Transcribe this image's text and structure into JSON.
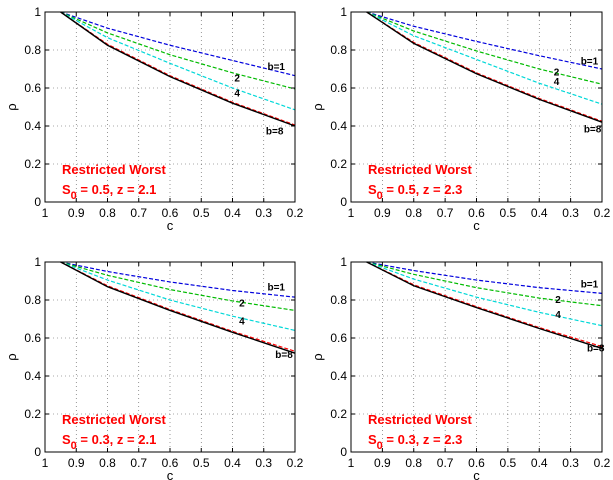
{
  "chart_data": [
    {
      "type": "line",
      "xlabel": "c",
      "ylabel": "ρ",
      "xlim": [
        1,
        0.2
      ],
      "ylim": [
        0,
        1
      ],
      "x_reversed": true,
      "x_ticks": [
        "1",
        "0.9",
        "0.8",
        "0.7",
        "0.6",
        "0.5",
        "0.4",
        "0.3",
        "0.2"
      ],
      "y_ticks": [
        "0",
        "0.2",
        "0.4",
        "0.6",
        "0.8",
        "1"
      ],
      "grid": true,
      "annotation": {
        "line1": "Restricted Worst",
        "sub_base": "S",
        "sub": "0",
        "line2_rest": " = 0.5, z = 2.1",
        "color": "#ff0000"
      },
      "series": [
        {
          "label": "b=1",
          "color": "#0000dd",
          "dashed": true,
          "points": [
            [
              0.95,
              1.0
            ],
            [
              0.8,
              0.915
            ],
            [
              0.6,
              0.825
            ],
            [
              0.4,
              0.745
            ],
            [
              0.2,
              0.665
            ]
          ]
        },
        {
          "label": "2",
          "color": "#00bb00",
          "dashed": true,
          "points": [
            [
              0.95,
              1.0
            ],
            [
              0.8,
              0.89
            ],
            [
              0.6,
              0.775
            ],
            [
              0.4,
              0.68
            ],
            [
              0.2,
              0.595
            ]
          ]
        },
        {
          "label": "4",
          "color": "#00d8d8",
          "dashed": true,
          "points": [
            [
              0.95,
              1.0
            ],
            [
              0.8,
              0.865
            ],
            [
              0.6,
              0.73
            ],
            [
              0.4,
              0.6
            ],
            [
              0.2,
              0.485
            ]
          ]
        },
        {
          "label": "b=8",
          "color": "#ff0000",
          "dashed": true,
          "points": [
            [
              0.95,
              1.0
            ],
            [
              0.8,
              0.83
            ],
            [
              0.6,
              0.665
            ],
            [
              0.4,
              0.525
            ],
            [
              0.2,
              0.405
            ]
          ]
        },
        {
          "label": "",
          "color": "#000000",
          "dashed": false,
          "points": [
            [
              0.95,
              1.0
            ],
            [
              0.8,
              0.825
            ],
            [
              0.6,
              0.66
            ],
            [
              0.4,
              0.52
            ],
            [
              0.2,
              0.4
            ]
          ]
        }
      ]
    },
    {
      "type": "line",
      "xlabel": "c",
      "ylabel": "ρ",
      "xlim": [
        1,
        0.2
      ],
      "ylim": [
        0,
        1
      ],
      "x_reversed": true,
      "x_ticks": [
        "1",
        "0.9",
        "0.8",
        "0.7",
        "0.6",
        "0.5",
        "0.4",
        "0.3",
        "0.2"
      ],
      "y_ticks": [
        "0",
        "0.2",
        "0.4",
        "0.6",
        "0.8",
        "1"
      ],
      "grid": true,
      "annotation": {
        "line1": "Restricted Worst",
        "sub_base": "S",
        "sub": "0",
        "line2_rest": " = 0.5, z = 2.3",
        "color": "#ff0000"
      },
      "series": [
        {
          "label": "b=1",
          "color": "#0000dd",
          "dashed": true,
          "points": [
            [
              0.95,
              1.0
            ],
            [
              0.8,
              0.925
            ],
            [
              0.6,
              0.845
            ],
            [
              0.4,
              0.77
            ],
            [
              0.2,
              0.7
            ]
          ]
        },
        {
          "label": "2",
          "color": "#00bb00",
          "dashed": true,
          "points": [
            [
              0.95,
              1.0
            ],
            [
              0.8,
              0.9
            ],
            [
              0.6,
              0.795
            ],
            [
              0.4,
              0.7
            ],
            [
              0.2,
              0.62
            ]
          ]
        },
        {
          "label": "4",
          "color": "#00d8d8",
          "dashed": true,
          "points": [
            [
              0.95,
              1.0
            ],
            [
              0.8,
              0.875
            ],
            [
              0.6,
              0.75
            ],
            [
              0.4,
              0.625
            ],
            [
              0.2,
              0.515
            ]
          ]
        },
        {
          "label": "b=8",
          "color": "#ff0000",
          "dashed": true,
          "points": [
            [
              0.95,
              1.0
            ],
            [
              0.8,
              0.84
            ],
            [
              0.6,
              0.68
            ],
            [
              0.4,
              0.545
            ],
            [
              0.2,
              0.425
            ]
          ]
        },
        {
          "label": "",
          "color": "#000000",
          "dashed": false,
          "points": [
            [
              0.95,
              1.0
            ],
            [
              0.8,
              0.835
            ],
            [
              0.6,
              0.675
            ],
            [
              0.4,
              0.54
            ],
            [
              0.2,
              0.42
            ]
          ]
        }
      ]
    },
    {
      "type": "line",
      "xlabel": "c",
      "ylabel": "ρ",
      "xlim": [
        1,
        0.2
      ],
      "ylim": [
        0,
        1
      ],
      "x_reversed": true,
      "x_ticks": [
        "1",
        "0.9",
        "0.8",
        "0.7",
        "0.6",
        "0.5",
        "0.4",
        "0.3",
        "0.2"
      ],
      "y_ticks": [
        "0",
        "0.2",
        "0.4",
        "0.6",
        "0.8",
        "1"
      ],
      "grid": true,
      "annotation": {
        "line1": "Restricted Worst",
        "sub_base": "S",
        "sub": "0",
        "line2_rest": " = 0.3, z = 2.1",
        "color": "#ff0000"
      },
      "series": [
        {
          "label": "b=1",
          "color": "#0000dd",
          "dashed": true,
          "points": [
            [
              0.95,
              1.0
            ],
            [
              0.8,
              0.95
            ],
            [
              0.6,
              0.895
            ],
            [
              0.4,
              0.85
            ],
            [
              0.2,
              0.815
            ]
          ]
        },
        {
          "label": "2",
          "color": "#00bb00",
          "dashed": true,
          "points": [
            [
              0.95,
              1.0
            ],
            [
              0.8,
              0.93
            ],
            [
              0.6,
              0.855
            ],
            [
              0.4,
              0.795
            ],
            [
              0.2,
              0.745
            ]
          ]
        },
        {
          "label": "4",
          "color": "#00d8d8",
          "dashed": true,
          "points": [
            [
              0.95,
              1.0
            ],
            [
              0.8,
              0.905
            ],
            [
              0.6,
              0.8
            ],
            [
              0.4,
              0.715
            ],
            [
              0.2,
              0.64
            ]
          ]
        },
        {
          "label": "b=8",
          "color": "#ff0000",
          "dashed": true,
          "points": [
            [
              0.95,
              1.0
            ],
            [
              0.8,
              0.875
            ],
            [
              0.6,
              0.75
            ],
            [
              0.4,
              0.635
            ],
            [
              0.2,
              0.53
            ]
          ]
        },
        {
          "label": "",
          "color": "#000000",
          "dashed": false,
          "points": [
            [
              0.95,
              1.0
            ],
            [
              0.8,
              0.87
            ],
            [
              0.6,
              0.745
            ],
            [
              0.4,
              0.63
            ],
            [
              0.2,
              0.52
            ]
          ]
        }
      ]
    },
    {
      "type": "line",
      "xlabel": "c",
      "ylabel": "ρ",
      "xlim": [
        1,
        0.2
      ],
      "ylim": [
        0,
        1
      ],
      "x_reversed": true,
      "x_ticks": [
        "1",
        "0.9",
        "0.8",
        "0.7",
        "0.6",
        "0.5",
        "0.4",
        "0.3",
        "0.2"
      ],
      "y_ticks": [
        "0",
        "0.2",
        "0.4",
        "0.6",
        "0.8",
        "1"
      ],
      "grid": true,
      "annotation": {
        "line1": "Restricted Worst",
        "sub_base": "S",
        "sub": "0",
        "line2_rest": " = 0.3, z = 2.3",
        "color": "#ff0000"
      },
      "series": [
        {
          "label": "b=1",
          "color": "#0000dd",
          "dashed": true,
          "points": [
            [
              0.95,
              1.0
            ],
            [
              0.8,
              0.955
            ],
            [
              0.6,
              0.905
            ],
            [
              0.4,
              0.865
            ],
            [
              0.2,
              0.835
            ]
          ]
        },
        {
          "label": "2",
          "color": "#00bb00",
          "dashed": true,
          "points": [
            [
              0.95,
              1.0
            ],
            [
              0.8,
              0.935
            ],
            [
              0.6,
              0.865
            ],
            [
              0.4,
              0.81
            ],
            [
              0.2,
              0.77
            ]
          ]
        },
        {
          "label": "4",
          "color": "#00d8d8",
          "dashed": true,
          "points": [
            [
              0.95,
              1.0
            ],
            [
              0.8,
              0.91
            ],
            [
              0.6,
              0.815
            ],
            [
              0.4,
              0.735
            ],
            [
              0.2,
              0.665
            ]
          ]
        },
        {
          "label": "b=8",
          "color": "#ff0000",
          "dashed": true,
          "points": [
            [
              0.95,
              1.0
            ],
            [
              0.8,
              0.88
            ],
            [
              0.6,
              0.765
            ],
            [
              0.4,
              0.655
            ],
            [
              0.2,
              0.555
            ]
          ]
        },
        {
          "label": "",
          "color": "#000000",
          "dashed": false,
          "points": [
            [
              0.95,
              1.0
            ],
            [
              0.8,
              0.875
            ],
            [
              0.6,
              0.76
            ],
            [
              0.4,
              0.65
            ],
            [
              0.2,
              0.545
            ]
          ]
        }
      ]
    }
  ]
}
